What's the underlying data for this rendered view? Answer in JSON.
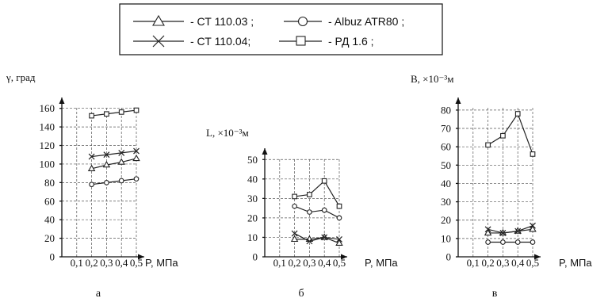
{
  "legend": {
    "items": [
      {
        "label": "- СТ 110.03 ;",
        "marker": "triangle"
      },
      {
        "label": "- Albuz ATR80 ;",
        "marker": "circle"
      },
      {
        "label": "- СТ 110.04;",
        "marker": "cross"
      },
      {
        "label": "- РД 1.6 ;",
        "marker": "square"
      }
    ]
  },
  "chart_data": [
    {
      "type": "line",
      "caption": "а",
      "ylabel": "γ, град",
      "xlabel": "P, МПа",
      "x_ticks": [
        "0,1",
        "0,2",
        "0,3",
        "0,4",
        "0,5"
      ],
      "x": [
        0.2,
        0.3,
        0.4,
        0.5
      ],
      "ylim": [
        0,
        170
      ],
      "y_ticks": [
        0,
        20,
        40,
        60,
        80,
        100,
        120,
        140,
        160
      ],
      "grid": true,
      "series": [
        {
          "name": "СТ 110.03",
          "marker": "triangle",
          "values": [
            95,
            99,
            102,
            106
          ]
        },
        {
          "name": "Albuz ATR80",
          "marker": "circle",
          "values": [
            78,
            80,
            82,
            84
          ]
        },
        {
          "name": "СТ 110.04",
          "marker": "cross",
          "values": [
            108,
            110,
            112,
            114
          ]
        },
        {
          "name": "РД 1.6",
          "marker": "square",
          "values": [
            152,
            154,
            156,
            158
          ]
        }
      ]
    },
    {
      "type": "line",
      "caption": "б",
      "ylabel": "L, ×10⁻³м",
      "xlabel": "P, МПа",
      "x_ticks": [
        "0,1",
        "0,2",
        "0,3",
        "0,4",
        "0,5"
      ],
      "x": [
        0.2,
        0.3,
        0.4,
        0.5
      ],
      "ylim": [
        0,
        55
      ],
      "y_ticks": [
        0,
        10,
        20,
        30,
        40,
        50
      ],
      "grid": true,
      "series": [
        {
          "name": "СТ 110.03",
          "marker": "triangle",
          "values": [
            9,
            9,
            10,
            7
          ]
        },
        {
          "name": "Albuz ATR80",
          "marker": "circle",
          "values": [
            26,
            23,
            24,
            20
          ]
        },
        {
          "name": "СТ 110.04",
          "marker": "cross",
          "values": [
            12,
            8,
            10,
            9
          ]
        },
        {
          "name": "РД 1.6",
          "marker": "square",
          "values": [
            31,
            32,
            39,
            26
          ]
        }
      ]
    },
    {
      "type": "line",
      "caption": "в",
      "ylabel": "B, ×10⁻³м",
      "xlabel": "P, МПа",
      "x_ticks": [
        "0,1",
        "0,2",
        "0,3",
        "0,4",
        "0,5"
      ],
      "x": [
        0.2,
        0.3,
        0.4,
        0.5
      ],
      "ylim": [
        0,
        86
      ],
      "y_ticks": [
        0,
        10,
        20,
        30,
        40,
        50,
        60,
        70,
        80
      ],
      "grid": true,
      "series": [
        {
          "name": "СТ 110.03",
          "marker": "triangle",
          "values": [
            13,
            13,
            14,
            15
          ]
        },
        {
          "name": "Albuz ATR80",
          "marker": "circle",
          "values": [
            8,
            8,
            8,
            8
          ]
        },
        {
          "name": "СТ 110.04",
          "marker": "cross",
          "values": [
            15,
            13,
            14,
            17
          ]
        },
        {
          "name": "РД 1.6",
          "marker": "square",
          "values": [
            61,
            66,
            78,
            56
          ]
        }
      ]
    }
  ]
}
